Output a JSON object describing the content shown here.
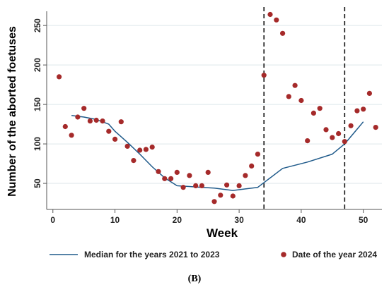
{
  "chart_data": {
    "type": "scatter",
    "xlabel": "Week",
    "ylabel": "Number of the aborted foetuses",
    "xlim": [
      -1,
      53
    ],
    "ylim": [
      17,
      268
    ],
    "xticks": [
      "0",
      "10",
      "20",
      "30",
      "40",
      "50"
    ],
    "yticks": [
      "50",
      "100",
      "150",
      "200",
      "250"
    ],
    "grid": true,
    "panel_label": "(B)",
    "vertical_reference_lines": [
      34,
      47
    ],
    "series": [
      {
        "name": "Median for the years 2021 to 2023",
        "kind": "line",
        "color": "#1f5a8a",
        "x": [
          3,
          5,
          7,
          9,
          10,
          12,
          14,
          16,
          18,
          20,
          22,
          24,
          26,
          28,
          29,
          31,
          33,
          37,
          41,
          45,
          47,
          50
        ],
        "y": [
          136,
          134,
          131,
          125,
          116,
          102,
          87,
          71,
          57,
          47,
          46,
          45,
          44,
          42,
          41,
          43,
          45,
          69,
          77,
          87,
          100,
          128
        ]
      },
      {
        "name": "Date of the year 2024",
        "kind": "scatter",
        "color": "#a52a2a",
        "x": [
          1,
          2,
          3,
          4,
          5,
          6,
          7,
          8,
          9,
          10,
          11,
          12,
          13,
          14,
          15,
          16,
          17,
          18,
          19,
          20,
          21,
          22,
          23,
          24,
          25,
          26,
          27,
          28,
          29,
          30,
          31,
          32,
          33,
          34,
          35,
          36,
          37,
          38,
          39,
          40,
          41,
          42,
          43,
          44,
          45,
          46,
          47,
          48,
          49,
          50,
          51,
          52
        ],
        "y": [
          185,
          122,
          111,
          134,
          145,
          129,
          130,
          129,
          116,
          106,
          128,
          97,
          79,
          92,
          93,
          96,
          65,
          56,
          56,
          64,
          45,
          60,
          47,
          47,
          64,
          27,
          35,
          48,
          34,
          47,
          60,
          72,
          87,
          187,
          264,
          257,
          240,
          160,
          174,
          155,
          104,
          139,
          145,
          118,
          108,
          113,
          103,
          123,
          142,
          144,
          164,
          121
        ]
      }
    ]
  }
}
